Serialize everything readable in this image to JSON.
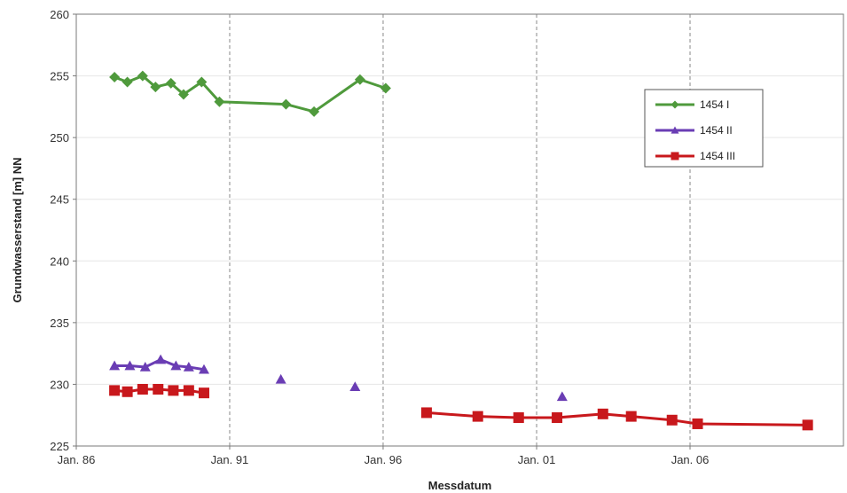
{
  "chart_data": {
    "type": "line",
    "xlabel": "Messdatum",
    "ylabel": "Grundwasserstand [m] NN",
    "xlim": [
      "1986-01-01",
      "2011-01-01"
    ],
    "ylim": [
      225,
      260
    ],
    "y_ticks": [
      225,
      230,
      235,
      240,
      245,
      250,
      255,
      260
    ],
    "x_ticks": [
      {
        "date": "1986-01-01",
        "label": "Jan. 86"
      },
      {
        "date": "1991-01-01",
        "label": "Jan. 91"
      },
      {
        "date": "1996-01-01",
        "label": "Jan. 96"
      },
      {
        "date": "2001-01-01",
        "label": "Jan. 01"
      },
      {
        "date": "2006-01-01",
        "label": "Jan. 06"
      }
    ],
    "grid": {
      "vertical": "dashed",
      "horizontal": "none"
    },
    "legend_position": "top-right",
    "series": [
      {
        "name": "1454 I",
        "color": "#4f9a3c",
        "marker": "diamond",
        "points": [
          {
            "x": "1987-04-01",
            "y": 254.9,
            "connect": true
          },
          {
            "x": "1987-09-01",
            "y": 254.5,
            "connect": true
          },
          {
            "x": "1988-03-01",
            "y": 255.0,
            "connect": true
          },
          {
            "x": "1988-08-01",
            "y": 254.1,
            "connect": true
          },
          {
            "x": "1989-02-01",
            "y": 254.4,
            "connect": true
          },
          {
            "x": "1989-07-01",
            "y": 253.5,
            "connect": true
          },
          {
            "x": "1990-02-01",
            "y": 254.5,
            "connect": true
          },
          {
            "x": "1990-09-01",
            "y": 252.9,
            "connect": true
          },
          {
            "x": "1992-11-01",
            "y": 252.7,
            "connect": true
          },
          {
            "x": "1993-10-01",
            "y": 252.1,
            "connect": true
          },
          {
            "x": "1995-04-01",
            "y": 254.7,
            "connect": true
          },
          {
            "x": "1996-02-01",
            "y": 254.0,
            "connect": true
          }
        ]
      },
      {
        "name": "1454 II",
        "color": "#6a3db4",
        "marker": "triangle",
        "points": [
          {
            "x": "1987-04-01",
            "y": 231.5,
            "connect": true
          },
          {
            "x": "1987-10-01",
            "y": 231.5,
            "connect": true
          },
          {
            "x": "1988-04-01",
            "y": 231.4,
            "connect": true
          },
          {
            "x": "1988-10-01",
            "y": 232.0,
            "connect": true
          },
          {
            "x": "1989-04-01",
            "y": 231.5,
            "connect": true
          },
          {
            "x": "1989-09-01",
            "y": 231.4,
            "connect": true
          },
          {
            "x": "1990-03-01",
            "y": 231.2,
            "connect": true
          },
          {
            "x": "1992-09-01",
            "y": 230.4,
            "connect": false
          },
          {
            "x": "1995-02-01",
            "y": 229.8,
            "connect": false
          },
          {
            "x": "2001-11-01",
            "y": 229.0,
            "connect": false
          }
        ]
      },
      {
        "name": "1454 III",
        "color": "#c8181c",
        "marker": "square",
        "points": [
          {
            "x": "1987-04-01",
            "y": 229.5,
            "connect": true
          },
          {
            "x": "1987-09-01",
            "y": 229.4,
            "connect": true
          },
          {
            "x": "1988-03-01",
            "y": 229.6,
            "connect": true
          },
          {
            "x": "1988-09-01",
            "y": 229.6,
            "connect": true
          },
          {
            "x": "1989-03-01",
            "y": 229.5,
            "connect": true
          },
          {
            "x": "1989-09-01",
            "y": 229.5,
            "connect": true
          },
          {
            "x": "1990-03-01",
            "y": 229.3,
            "connect": true
          },
          {
            "x": "1997-06-01",
            "y": 227.7,
            "connect": false
          },
          {
            "x": "1999-02-01",
            "y": 227.4,
            "connect": true
          },
          {
            "x": "2000-06-01",
            "y": 227.3,
            "connect": true
          },
          {
            "x": "2001-09-01",
            "y": 227.3,
            "connect": true
          },
          {
            "x": "2003-03-01",
            "y": 227.6,
            "connect": true
          },
          {
            "x": "2004-02-01",
            "y": 227.4,
            "connect": true
          },
          {
            "x": "2005-06-01",
            "y": 227.1,
            "connect": true
          },
          {
            "x": "2006-04-01",
            "y": 226.8,
            "connect": true
          },
          {
            "x": "2009-11-01",
            "y": 226.7,
            "connect": true
          }
        ]
      }
    ]
  }
}
